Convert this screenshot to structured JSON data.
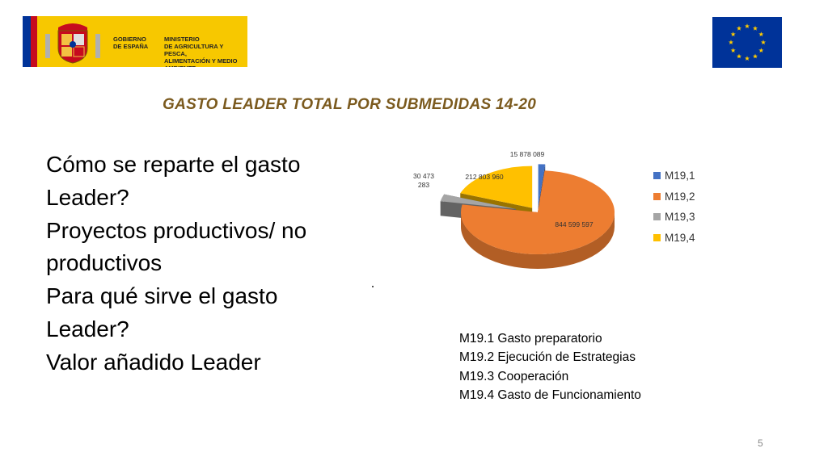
{
  "header": {
    "logo_text_1": "GOBIERNO DE ESPAÑA",
    "logo_text_2": "MINISTERIO DE AGRICULTURA Y PESCA, ALIMENTACIÓN Y MEDIO AMBIENTE"
  },
  "title": "GASTO LEADER TOTAL POR SUBMEDIDAS 14-20",
  "questions": [
    "Cómo se reparte el gasto",
    "Leader?",
    "Proyectos productivos/ no",
    "productivos",
    "Para qué sirve el gasto",
    "Leader?",
    "Valor añadido Leader"
  ],
  "chart_data": {
    "type": "pie",
    "style": "3d-exploded",
    "categories": [
      "M19,1",
      "M19,2",
      "M19,3",
      "M19,4"
    ],
    "values": [
      15878089,
      844599597,
      30473283,
      212803960
    ],
    "data_labels": [
      "15 878 089",
      "844 599 597",
      "30 473 283",
      "212 803 960"
    ],
    "colors": [
      "#4472c4",
      "#ed7d31",
      "#a5a5a5",
      "#ffc000"
    ],
    "legend_position": "right",
    "title": ""
  },
  "legend": [
    {
      "label": "M19,1",
      "color": "#4472c4"
    },
    {
      "label": "M19,2",
      "color": "#ed7d31"
    },
    {
      "label": "M19,3",
      "color": "#a5a5a5"
    },
    {
      "label": "M19,4",
      "color": "#ffc000"
    }
  ],
  "descriptions": [
    "M19.1 Gasto preparatorio",
    "M19.2 Ejecución de Estrategias",
    "M19.3 Cooperación",
    "M19.4 Gasto de Funcionamiento"
  ],
  "page_number": "5",
  "colors": {
    "title": "#7b5a1e",
    "eu_blue": "#003399",
    "eu_star": "#ffcc00",
    "gov_yellow": "#f7c800"
  }
}
